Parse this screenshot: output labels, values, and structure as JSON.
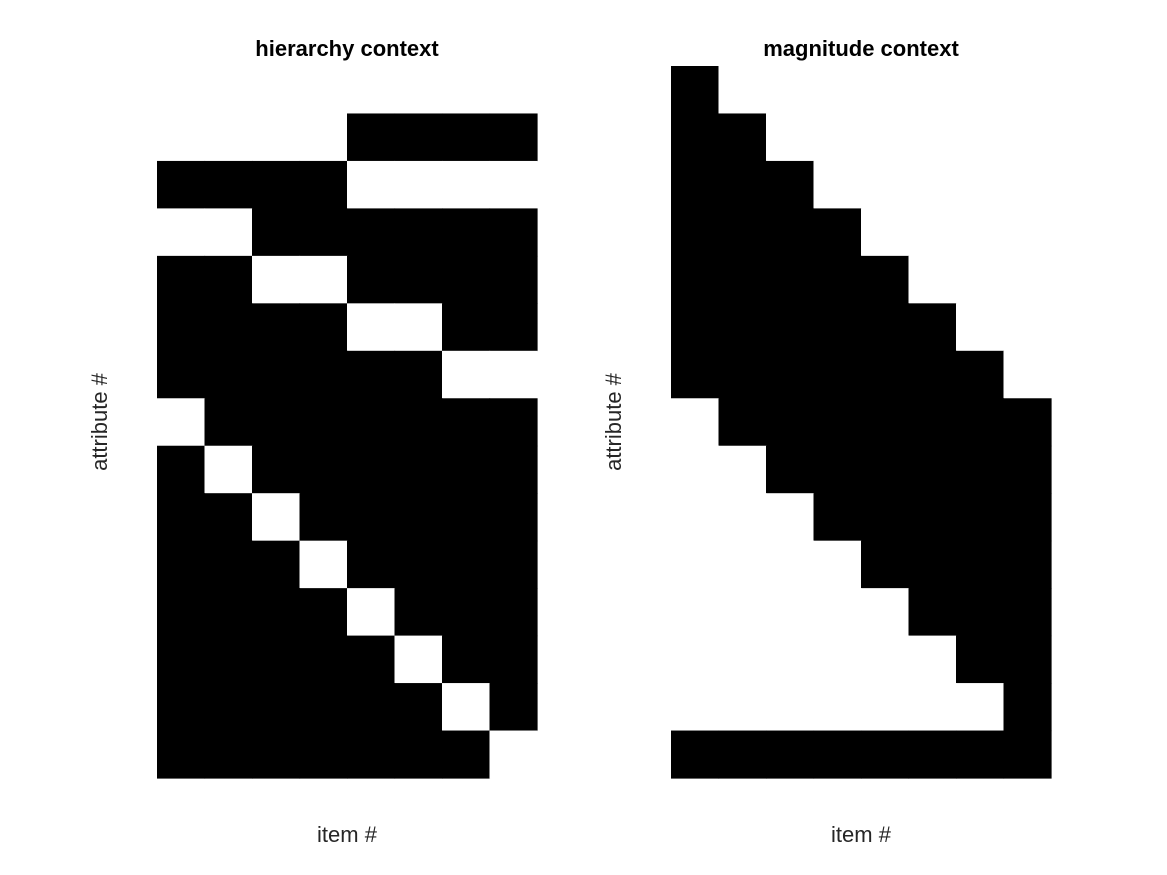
{
  "chart_data": [
    {
      "type": "heatmap",
      "title": "hierarchy context",
      "xlabel": "item #",
      "ylabel": "attribute #",
      "n_items": 8,
      "n_attributes": 15,
      "colormap": {
        "0": "#ffffff",
        "1": "#000000"
      },
      "grid": false,
      "matrix": [
        [
          0,
          0,
          0,
          0,
          0,
          0,
          0,
          0
        ],
        [
          0,
          0,
          0,
          0,
          1,
          1,
          1,
          1
        ],
        [
          1,
          1,
          1,
          1,
          0,
          0,
          0,
          0
        ],
        [
          0,
          0,
          1,
          1,
          1,
          1,
          1,
          1
        ],
        [
          1,
          1,
          0,
          0,
          1,
          1,
          1,
          1
        ],
        [
          1,
          1,
          1,
          1,
          0,
          0,
          1,
          1
        ],
        [
          1,
          1,
          1,
          1,
          1,
          1,
          0,
          0
        ],
        [
          0,
          1,
          1,
          1,
          1,
          1,
          1,
          1
        ],
        [
          1,
          0,
          1,
          1,
          1,
          1,
          1,
          1
        ],
        [
          1,
          1,
          0,
          1,
          1,
          1,
          1,
          1
        ],
        [
          1,
          1,
          1,
          0,
          1,
          1,
          1,
          1
        ],
        [
          1,
          1,
          1,
          1,
          0,
          1,
          1,
          1
        ],
        [
          1,
          1,
          1,
          1,
          1,
          0,
          1,
          1
        ],
        [
          1,
          1,
          1,
          1,
          1,
          1,
          0,
          1
        ],
        [
          1,
          1,
          1,
          1,
          1,
          1,
          1,
          0
        ]
      ]
    },
    {
      "type": "heatmap",
      "title": "magnitude context",
      "xlabel": "item #",
      "ylabel": "attribute #",
      "n_items": 8,
      "n_attributes": 15,
      "colormap": {
        "0": "#ffffff",
        "1": "#000000"
      },
      "grid": false,
      "matrix": [
        [
          1,
          0,
          0,
          0,
          0,
          0,
          0,
          0
        ],
        [
          1,
          1,
          0,
          0,
          0,
          0,
          0,
          0
        ],
        [
          1,
          1,
          1,
          0,
          0,
          0,
          0,
          0
        ],
        [
          1,
          1,
          1,
          1,
          0,
          0,
          0,
          0
        ],
        [
          1,
          1,
          1,
          1,
          1,
          0,
          0,
          0
        ],
        [
          1,
          1,
          1,
          1,
          1,
          1,
          0,
          0
        ],
        [
          1,
          1,
          1,
          1,
          1,
          1,
          1,
          0
        ],
        [
          0,
          1,
          1,
          1,
          1,
          1,
          1,
          1
        ],
        [
          0,
          0,
          1,
          1,
          1,
          1,
          1,
          1
        ],
        [
          0,
          0,
          0,
          1,
          1,
          1,
          1,
          1
        ],
        [
          0,
          0,
          0,
          0,
          1,
          1,
          1,
          1
        ],
        [
          0,
          0,
          0,
          0,
          0,
          1,
          1,
          1
        ],
        [
          0,
          0,
          0,
          0,
          0,
          0,
          1,
          1
        ],
        [
          0,
          0,
          0,
          0,
          0,
          0,
          0,
          1
        ],
        [
          1,
          1,
          1,
          1,
          1,
          1,
          1,
          1
        ]
      ]
    }
  ]
}
